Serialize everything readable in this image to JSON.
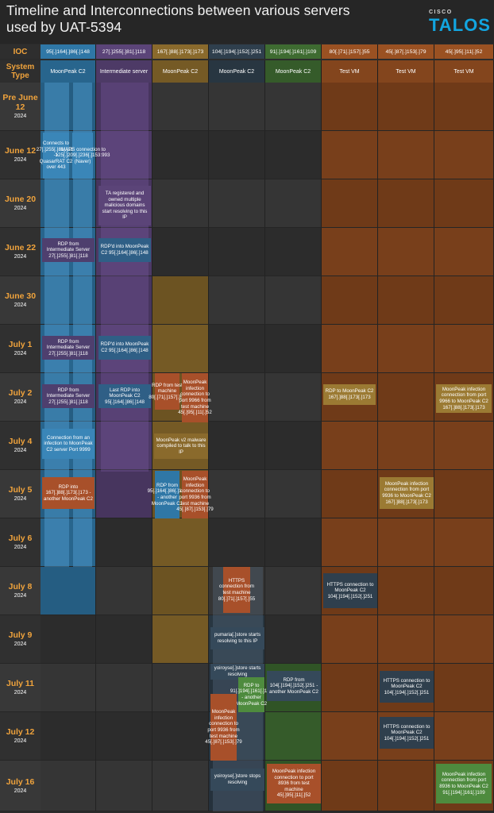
{
  "title": "Timeline and Interconnections between various servers used by UAT-5394",
  "logo": {
    "cisco": "CISCO",
    "talos": "TALOS"
  },
  "header_labels": {
    "ioc": "IOC",
    "system_type": "System Type"
  },
  "columns": [
    {
      "ioc": "95[.]164[.]86[.]148",
      "type": "MoonPeak C2",
      "color": "#2f77a6"
    },
    {
      "ioc": "27[.]255[.]81[.]118",
      "type": "Intermediate server",
      "color": "#5b4478"
    },
    {
      "ioc": "167[.]88[.]173[.]173",
      "type": "MoonPeak C2",
      "color": "#8a6a2c"
    },
    {
      "ioc": "104[.]194[.]152[.]251",
      "type": "MoonPeak C2",
      "color": "#2f3f4d"
    },
    {
      "ioc": "91[.]194[.]161[.]109",
      "type": "MoonPeak C2",
      "color": "#3e6b31"
    },
    {
      "ioc": "80[.]71[.]157[.]55",
      "type": "Test VM",
      "color": "#9a5122"
    },
    {
      "ioc": "45[.]87[.]153[.]79",
      "type": "Test VM",
      "color": "#9a5122"
    },
    {
      "ioc": "45[.]95[.]11[.]52",
      "type": "Test VM",
      "color": "#9a5122"
    }
  ],
  "rows": [
    {
      "date": "Pre June 12",
      "year": "2024"
    },
    {
      "date": "June 12",
      "year": "2024"
    },
    {
      "date": "June 20",
      "year": "2024"
    },
    {
      "date": "June 22",
      "year": "2024"
    },
    {
      "date": "June 30",
      "year": "2024"
    },
    {
      "date": "July 1",
      "year": "2024"
    },
    {
      "date": "July 2",
      "year": "2024"
    },
    {
      "date": "July 4",
      "year": "2024"
    },
    {
      "date": "July 5",
      "year": "2024"
    },
    {
      "date": "July 6",
      "year": "2024"
    },
    {
      "date": "July 8",
      "year": "2024"
    },
    {
      "date": "July 9",
      "year": "2024"
    },
    {
      "date": "July 11",
      "year": "2024"
    },
    {
      "date": "July 12",
      "year": "2024"
    },
    {
      "date": "July 16",
      "year": "2024"
    }
  ],
  "events": {
    "e01": "Connects to 27[.]255[.]81[.]118 ->\nQuasarRAT C2 over 443",
    "e02": "IMAPS connection to 125[.]209[.]236[.]153:993 (Naver)",
    "e03": "TA registered and owned multiple malicious domains start resolving to this IP",
    "e04": "RDP from Intermediate Server 27[.]255[.]81[.]118",
    "e05": "RDP'd into MoonPeak C2 95[.]164[.]86[.]148",
    "e06": "RDP from Intermediate Server 27[.]255[.]81[.]118",
    "e07": "RDP'd into MoonPeak C2 95[.]164[.]86[.]148",
    "e08": "RDP from Intermediate Server 27[.]255[.]81[.]118",
    "e09": "Last RDP into MoonPeak C2 95[.]164[.]86[.]148",
    "e10": "RDP from test machine 80[.]71[.]157[.]55",
    "e11": "MoonPeak infection connection to port 9966 from test machine 45[.]95[.]11[.]52",
    "e12": "RDP to MoonPeak C2 167[.]88[.]173[.]173",
    "e13": "MoonPeak infection connection from port 9966 to MoonPeak C2 167[.]88[.]173[.]173",
    "e14": "Connection from an infection to MoonPeak C2 server Port 9999",
    "e15": "MoonPeak v2 malware compiled to talk to this IP",
    "e16": "RDP into 167[.]88[.]173[.]173 - another MoonPeak C2",
    "e17": "RDP from 95[.]164[.]86[.]148 - another MoonPeak C2",
    "e18": "MoonPeak infection connection to port 9936 from test machine 45[.]87[.]153[.]79",
    "e19": "MoonPeak infection connection from port 9936 to MoonPeak C2 167[.]88[.]173[.]173",
    "e20": "HTTPS connection from test machine 80[.]71[.]157[.]55",
    "e21": "HTTPS connection to MoonPeak C2 104[.]194[.]152[.]251",
    "e22": "pumaria[.]store starts resolving to this IP",
    "e23": "yoiroyse[.]store starts resolving",
    "e24": "RDP to 91[.]194[.]161[.]109 - another MoonPeak C2",
    "e25": "RDP from 104[.]194[.]152[.]251 - another MoonPeak C2",
    "e26": "HTTPS connection to MoonPeak C2 104[.]194[.]152[.]251",
    "e27": "MoonPeak infection connection to port 9936 from test machine 45[.]87[.]153[.]79",
    "e28": "HTTPS connection to MoonPeak C2 104[.]194[.]152[.]251",
    "e29": "yoiroyse[.]store stops resolving",
    "e30": "MoonPeak infection connection to port 8936 from test machine 45[.]95[.]11[.]52",
    "e31": "MoonPeak infection connection from port 8936 to MoonPeak C2 91[.]194[.]161[.]109"
  }
}
